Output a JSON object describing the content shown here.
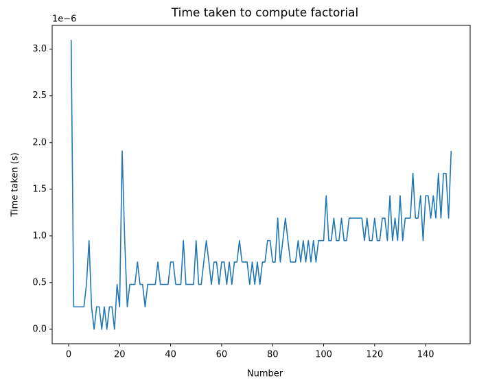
{
  "chart_data": {
    "type": "line",
    "title": "Time taken to compute factorial",
    "x_label": "Number",
    "y_label": "Time taken (s)",
    "y_offset_label": "1e−6",
    "x": [
      1,
      2,
      3,
      4,
      5,
      6,
      7,
      8,
      9,
      10,
      11,
      12,
      13,
      14,
      15,
      16,
      17,
      18,
      19,
      20,
      21,
      22,
      23,
      24,
      25,
      26,
      27,
      28,
      29,
      30,
      31,
      32,
      33,
      34,
      35,
      36,
      37,
      38,
      39,
      40,
      41,
      42,
      43,
      44,
      45,
      46,
      47,
      48,
      49,
      50,
      51,
      52,
      53,
      54,
      55,
      56,
      57,
      58,
      59,
      60,
      61,
      62,
      63,
      64,
      65,
      66,
      67,
      68,
      69,
      70,
      71,
      72,
      73,
      74,
      75,
      76,
      77,
      78,
      79,
      80,
      81,
      82,
      83,
      84,
      85,
      86,
      87,
      88,
      89,
      90,
      91,
      92,
      93,
      94,
      95,
      96,
      97,
      98,
      99,
      100,
      101,
      102,
      103,
      104,
      105,
      106,
      107,
      108,
      109,
      110,
      111,
      112,
      113,
      114,
      115,
      116,
      117,
      118,
      119,
      120,
      121,
      122,
      123,
      124,
      125,
      126,
      127,
      128,
      129,
      130,
      131,
      132,
      133,
      134,
      135,
      136,
      137,
      138,
      139,
      140,
      141,
      142,
      143,
      144,
      145,
      146,
      147,
      148,
      149,
      150
    ],
    "series": [
      {
        "color": "#1f77b4",
        "values": [
          3.1,
          0.24,
          0.24,
          0.24,
          0.24,
          0.24,
          0.48,
          0.95,
          0.24,
          0,
          0.24,
          0.24,
          0,
          0.24,
          0,
          0.24,
          0.24,
          0,
          0.48,
          0.24,
          1.91,
          0.95,
          0.24,
          0.48,
          0.48,
          0.48,
          0.72,
          0.48,
          0.48,
          0.24,
          0.48,
          0.48,
          0.48,
          0.48,
          0.72,
          0.48,
          0.48,
          0.48,
          0.48,
          0.72,
          0.72,
          0.48,
          0.48,
          0.48,
          0.95,
          0.48,
          0.48,
          0.48,
          0.48,
          0.95,
          0.48,
          0.48,
          0.72,
          0.95,
          0.72,
          0.48,
          0.72,
          0.72,
          0.48,
          0.72,
          0.72,
          0.48,
          0.72,
          0.48,
          0.72,
          0.72,
          0.95,
          0.72,
          0.72,
          0.72,
          0.48,
          0.72,
          0.48,
          0.72,
          0.48,
          0.72,
          0.72,
          0.95,
          0.95,
          0.72,
          0.72,
          1.19,
          0.72,
          0.95,
          1.19,
          0.95,
          0.72,
          0.72,
          0.72,
          0.95,
          0.72,
          0.95,
          0.72,
          0.95,
          0.72,
          0.95,
          0.72,
          0.95,
          0.95,
          0.95,
          1.43,
          0.95,
          0.95,
          1.19,
          0.95,
          0.95,
          1.19,
          0.95,
          0.95,
          1.19,
          1.19,
          1.19,
          1.19,
          1.19,
          1.19,
          0.95,
          1.19,
          0.95,
          0.95,
          1.19,
          0.95,
          0.95,
          1.19,
          1.19,
          0.95,
          1.43,
          0.95,
          1.19,
          0.95,
          1.43,
          0.95,
          1.19,
          1.19,
          1.19,
          1.67,
          1.19,
          1.19,
          1.43,
          0.95,
          1.43,
          1.43,
          1.19,
          1.43,
          1.19,
          1.67,
          1.19,
          1.67,
          1.67,
          1.19,
          1.91
        ]
      }
    ],
    "xlim": [
      -6.45,
      157.45
    ],
    "ylim": [
      -0.155,
      3.255
    ],
    "xticks": [
      0,
      20,
      40,
      60,
      80,
      100,
      120,
      140
    ],
    "yticks": [
      {
        "value": 0,
        "label": "0.0"
      },
      0.5,
      {
        "value": 1,
        "label": "1.0"
      },
      1.5,
      {
        "value": 2,
        "label": "2.0"
      },
      2.5,
      {
        "value": 3,
        "label": "3.0"
      }
    ],
    "grid": false
  }
}
